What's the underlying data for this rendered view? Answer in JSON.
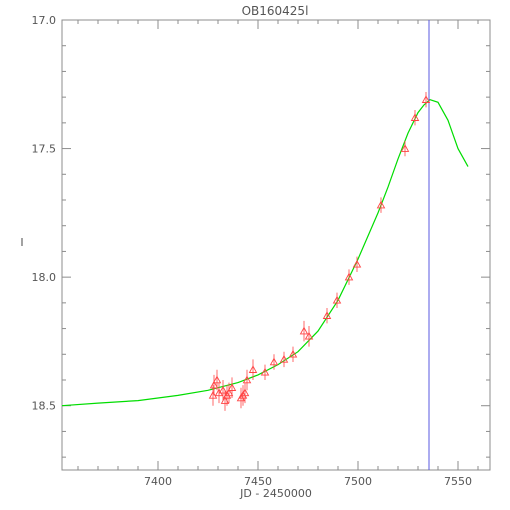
{
  "chart_data": {
    "type": "scatter",
    "title": "OB160425l",
    "xlabel": "JD - 2450000",
    "ylabel": "I",
    "xlim": [
      7352,
      7566
    ],
    "ylim": [
      18.75,
      17.0
    ],
    "y_inverted": true,
    "grid": false,
    "x_ticks": [
      7400,
      7450,
      7500,
      7550
    ],
    "x_tick_labels": [
      "7400",
      "7450",
      "7500",
      "7550"
    ],
    "y_ticks": [
      17.0,
      17.5,
      18.0,
      18.5
    ],
    "y_tick_labels": [
      "17.0",
      "17.5",
      "18.0",
      "18.5"
    ],
    "colors": {
      "model": "#00dd00",
      "points": "#ff4444",
      "marker_line": "#5a5ae0",
      "axes": "#8c8c8c"
    },
    "vertical_marker": {
      "x": 7535.5
    },
    "series": [
      {
        "type": "scatter-errorbar",
        "marker": "triangle",
        "points": [
          {
            "x": 7427.5,
            "y": 18.46,
            "err": 0.04
          },
          {
            "x": 7428.0,
            "y": 18.42,
            "err": 0.04
          },
          {
            "x": 7429.5,
            "y": 18.4,
            "err": 0.04
          },
          {
            "x": 7430.5,
            "y": 18.45,
            "err": 0.04
          },
          {
            "x": 7432.5,
            "y": 18.44,
            "err": 0.04
          },
          {
            "x": 7433.5,
            "y": 18.48,
            "err": 0.04
          },
          {
            "x": 7434.5,
            "y": 18.46,
            "err": 0.04
          },
          {
            "x": 7435.5,
            "y": 18.45,
            "err": 0.04
          },
          {
            "x": 7437.0,
            "y": 18.43,
            "err": 0.04
          },
          {
            "x": 7441.5,
            "y": 18.47,
            "err": 0.04
          },
          {
            "x": 7442.5,
            "y": 18.46,
            "err": 0.04
          },
          {
            "x": 7443.5,
            "y": 18.45,
            "err": 0.04
          },
          {
            "x": 7444.5,
            "y": 18.4,
            "err": 0.04
          },
          {
            "x": 7447.5,
            "y": 18.36,
            "err": 0.04
          },
          {
            "x": 7453.5,
            "y": 18.37,
            "err": 0.03
          },
          {
            "x": 7458.0,
            "y": 18.33,
            "err": 0.03
          },
          {
            "x": 7463.0,
            "y": 18.32,
            "err": 0.03
          },
          {
            "x": 7467.5,
            "y": 18.3,
            "err": 0.03
          },
          {
            "x": 7473.0,
            "y": 18.21,
            "err": 0.04
          },
          {
            "x": 7475.5,
            "y": 18.23,
            "err": 0.04
          },
          {
            "x": 7484.5,
            "y": 18.15,
            "err": 0.03
          },
          {
            "x": 7489.5,
            "y": 18.09,
            "err": 0.03
          },
          {
            "x": 7495.5,
            "y": 18.0,
            "err": 0.03
          },
          {
            "x": 7499.5,
            "y": 17.95,
            "err": 0.03
          },
          {
            "x": 7511.5,
            "y": 17.72,
            "err": 0.03
          },
          {
            "x": 7523.5,
            "y": 17.5,
            "err": 0.03
          },
          {
            "x": 7528.5,
            "y": 17.38,
            "err": 0.03
          },
          {
            "x": 7534.0,
            "y": 17.31,
            "err": 0.03
          }
        ]
      },
      {
        "type": "line",
        "x": [
          7352,
          7370,
          7390,
          7410,
          7425,
          7440,
          7450,
          7460,
          7470,
          7480,
          7490,
          7500,
          7510,
          7515,
          7520,
          7525,
          7530,
          7533,
          7536,
          7540,
          7545,
          7550,
          7555
        ],
        "y": [
          18.5,
          18.49,
          18.48,
          18.46,
          18.44,
          18.41,
          18.38,
          18.34,
          18.29,
          18.21,
          18.09,
          17.93,
          17.75,
          17.65,
          17.54,
          17.44,
          17.36,
          17.33,
          17.31,
          17.32,
          17.39,
          17.5,
          17.57
        ]
      }
    ]
  }
}
